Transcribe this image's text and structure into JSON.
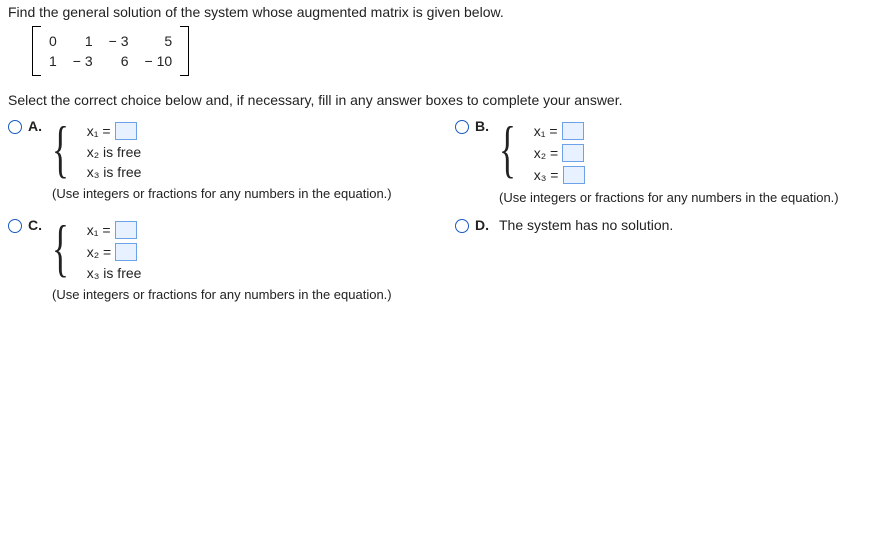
{
  "prompt": "Find the general solution of the system whose augmented matrix is given below.",
  "matrix": {
    "r1c1": "0",
    "r1c2": "1",
    "r1c3": "− 3",
    "r1c4": "5",
    "r2c1": "1",
    "r2c2": "− 3",
    "r2c3": "6",
    "r2c4": "− 10"
  },
  "instruction": "Select the correct choice below and, if necessary, fill in any answer boxes to complete your answer.",
  "letters": {
    "a": "A.",
    "b": "B.",
    "c": "C.",
    "d": "D."
  },
  "labels": {
    "x1eq": "x₁ =",
    "x2eq": "x₂ =",
    "x3eq": "x₃ =",
    "x2free": "x₂ is free",
    "x3free": "x₃ is free"
  },
  "hint": "(Use integers or fractions for any numbers in the equation.)",
  "optD": "The system has no solution.",
  "colors": {
    "radio_border": "#1a5bbf",
    "input_bg": "#e7f1ff",
    "input_border": "#6ea2e8"
  }
}
